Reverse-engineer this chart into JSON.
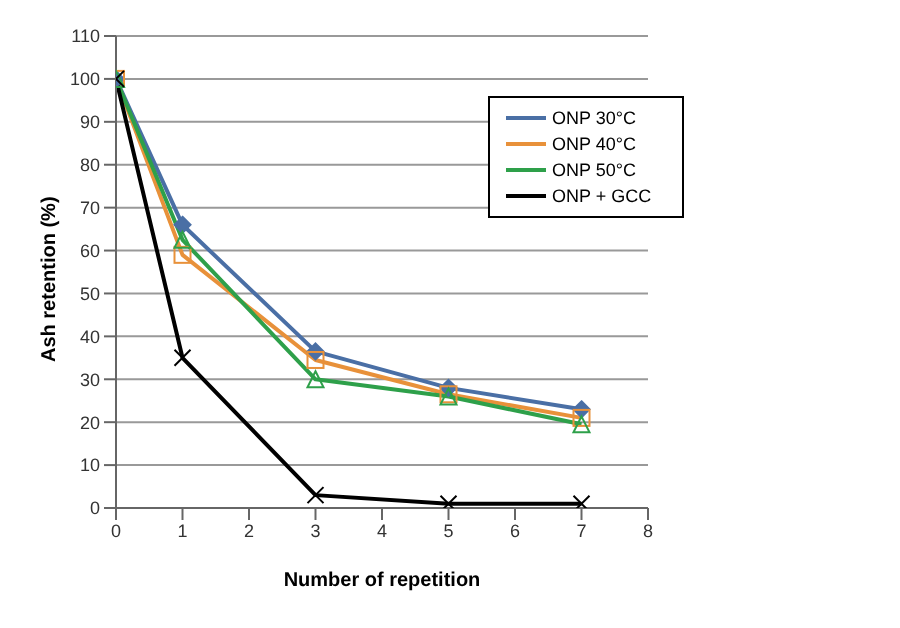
{
  "chart_data": {
    "type": "line",
    "xlabel": "Number of repetition",
    "ylabel": "Ash retention (%)",
    "x": [
      0,
      1,
      3,
      5,
      7
    ],
    "series": [
      {
        "name": "ONP 30°C",
        "color": "#4a6fa5",
        "marker": "diamond",
        "values": [
          100,
          66,
          36.5,
          28,
          23
        ]
      },
      {
        "name": "ONP 40°C",
        "color": "#e8913a",
        "marker": "square",
        "values": [
          100,
          59,
          34.5,
          26.5,
          21
        ]
      },
      {
        "name": "ONP 50°C",
        "color": "#2ea04a",
        "marker": "triangle",
        "values": [
          100,
          62.5,
          30,
          26,
          19.5
        ]
      },
      {
        "name": "ONP + GCC",
        "color": "#000000",
        "marker": "cross",
        "values": [
          100,
          35,
          3,
          1,
          1
        ]
      }
    ],
    "xlim": [
      0,
      8
    ],
    "xticks": [
      0,
      1,
      2,
      3,
      4,
      5,
      6,
      7,
      8
    ],
    "ylim": [
      0,
      110
    ],
    "yticks": [
      0,
      10,
      20,
      30,
      40,
      50,
      60,
      70,
      80,
      90,
      100,
      110
    ],
    "grid": "y",
    "legend": "top right",
    "line_style": "solid"
  }
}
